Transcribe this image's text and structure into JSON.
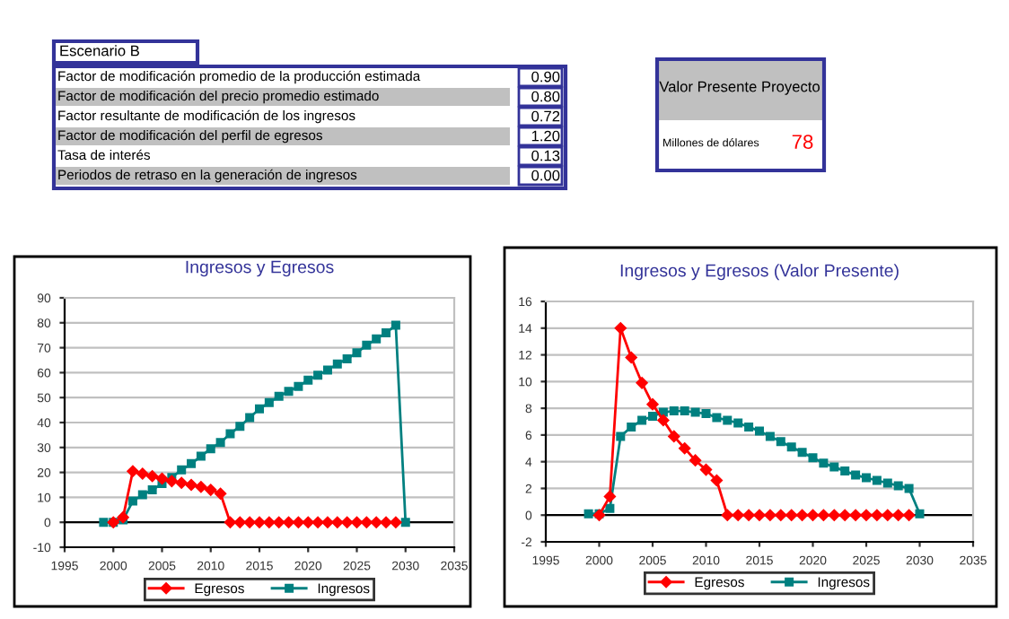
{
  "chart_data": [
    {
      "type": "other",
      "title": "Escenario B",
      "annotations": [
        "Factor de modificación promedio de la producción estimada",
        "0.90",
        "Factor de modificación del precio promedio estimado",
        "0.80",
        "Factor resultante de modificación de los ingresos",
        "0.72",
        "Factor de modificación del perfil de egresos",
        "1.20",
        "Tasa de interés",
        "0.13",
        "Periodos de retraso en la generación de ingresos",
        "0.00",
        "Valor Presente Proyecto",
        "Millones de dólares",
        "78"
      ]
    },
    {
      "type": "line",
      "title": "Ingresos y Egresos",
      "xlim": [
        1995,
        2035
      ],
      "xticks": [
        1995,
        2000,
        2005,
        2010,
        2015,
        2020,
        2025,
        2030,
        2035
      ],
      "ylim": [
        -10,
        90
      ],
      "yticks": [
        -10,
        0,
        10,
        20,
        30,
        40,
        50,
        60,
        70,
        80,
        90
      ],
      "grid": "y",
      "legend": "bottom",
      "series": [
        {
          "name": "Egresos",
          "color": "#ff0000",
          "marker": "diamond",
          "x": [
            2000,
            2001,
            2002,
            2003,
            2004,
            2005,
            2006,
            2007,
            2008,
            2009,
            2010,
            2011,
            2012,
            2013,
            2014,
            2015,
            2016,
            2017,
            2018,
            2019,
            2020,
            2021,
            2022,
            2023,
            2024,
            2025,
            2026,
            2027,
            2028,
            2029
          ],
          "values": [
            0,
            2,
            20.5,
            19.5,
            18.5,
            17.5,
            16.5,
            15.8,
            15,
            14.2,
            13,
            11.5,
            0,
            0,
            0,
            0,
            0,
            0,
            0,
            0,
            0,
            0,
            0,
            0,
            0,
            0,
            0,
            0,
            0,
            0
          ]
        },
        {
          "name": "Ingresos",
          "color": "#008080",
          "marker": "square",
          "x": [
            1999,
            2000,
            2001,
            2002,
            2003,
            2004,
            2005,
            2006,
            2007,
            2008,
            2009,
            2010,
            2011,
            2012,
            2013,
            2014,
            2015,
            2016,
            2017,
            2018,
            2019,
            2020,
            2021,
            2022,
            2023,
            2024,
            2025,
            2026,
            2027,
            2028,
            2029,
            2030
          ],
          "values": [
            0,
            0,
            1,
            8.5,
            11,
            13,
            15.5,
            18,
            21,
            23.5,
            26.5,
            29.5,
            32,
            35.5,
            38.5,
            42,
            45.5,
            48,
            50.5,
            52.5,
            54.5,
            57,
            59,
            61,
            63.5,
            65.5,
            68,
            71,
            73.5,
            76,
            79,
            0
          ]
        }
      ]
    },
    {
      "type": "line",
      "title": "Ingresos y Egresos (Valor Presente)",
      "xlim": [
        1995,
        2035
      ],
      "xticks": [
        1995,
        2000,
        2005,
        2010,
        2015,
        2020,
        2025,
        2030,
        2035
      ],
      "ylim": [
        -2,
        16
      ],
      "yticks": [
        -2,
        0,
        2,
        4,
        6,
        8,
        10,
        12,
        14,
        16
      ],
      "grid": "y",
      "legend": "bottom",
      "series": [
        {
          "name": "Egresos",
          "color": "#ff0000",
          "marker": "diamond",
          "x": [
            2000,
            2001,
            2002,
            2003,
            2004,
            2005,
            2006,
            2007,
            2008,
            2009,
            2010,
            2011,
            2012,
            2013,
            2014,
            2015,
            2016,
            2017,
            2018,
            2019,
            2020,
            2021,
            2022,
            2023,
            2024,
            2025,
            2026,
            2027,
            2028,
            2029
          ],
          "values": [
            0,
            1.4,
            14,
            11.8,
            9.9,
            8.3,
            7.1,
            5.9,
            5,
            4.1,
            3.4,
            2.6,
            0,
            0,
            0,
            0,
            0,
            0,
            0,
            0,
            0,
            0,
            0,
            0,
            0,
            0,
            0,
            0,
            0,
            0
          ]
        },
        {
          "name": "Ingresos",
          "color": "#008080",
          "marker": "square",
          "x": [
            1999,
            2000,
            2001,
            2002,
            2003,
            2004,
            2005,
            2006,
            2007,
            2008,
            2009,
            2010,
            2011,
            2012,
            2013,
            2014,
            2015,
            2016,
            2017,
            2018,
            2019,
            2020,
            2021,
            2022,
            2023,
            2024,
            2025,
            2026,
            2027,
            2028,
            2029,
            2030
          ],
          "values": [
            0.1,
            0.1,
            0.5,
            5.9,
            6.6,
            7.1,
            7.4,
            7.7,
            7.8,
            7.8,
            7.7,
            7.6,
            7.3,
            7.1,
            6.9,
            6.6,
            6.3,
            5.9,
            5.5,
            5.1,
            4.7,
            4.3,
            3.9,
            3.6,
            3.3,
            3.0,
            2.8,
            2.6,
            2.4,
            2.2,
            2.0,
            0.1
          ]
        }
      ]
    }
  ]
}
